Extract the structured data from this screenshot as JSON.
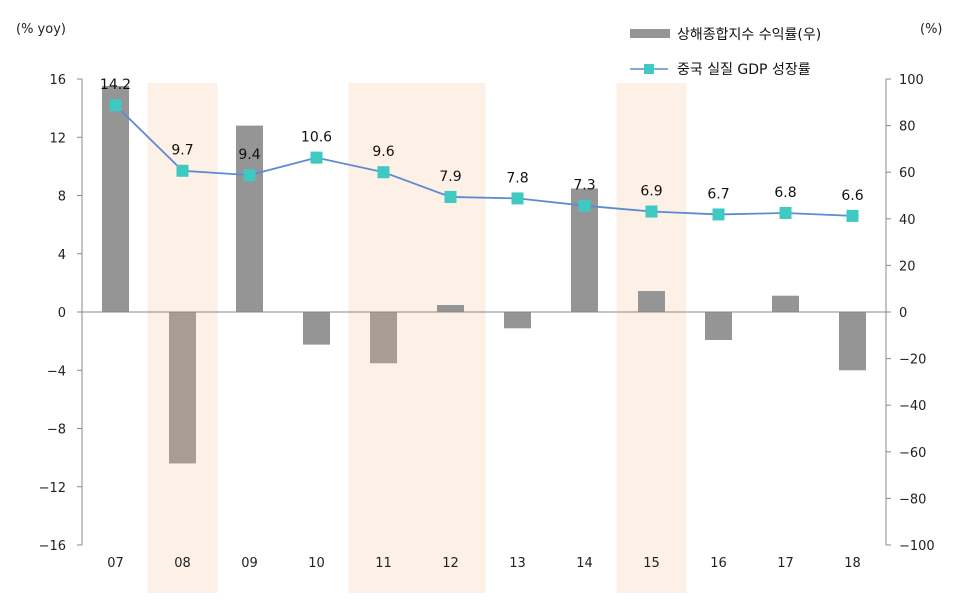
{
  "chart_data": {
    "type": "bar",
    "categories": [
      "07",
      "08",
      "09",
      "10",
      "11",
      "12",
      "13",
      "14",
      "15",
      "16",
      "17",
      "18"
    ],
    "left_axis": {
      "unit": "(% yoy)",
      "ylim": [
        -16,
        16
      ],
      "ticks": [
        "16",
        "12",
        "8",
        "4",
        "0",
        "−4",
        "−8",
        "−12",
        "−16"
      ]
    },
    "right_axis": {
      "unit": "(%)",
      "ylim": [
        -100,
        100
      ],
      "ticks": [
        "100",
        "80",
        "60",
        "40",
        "20",
        "0",
        "−20",
        "−40",
        "−60",
        "−80",
        "−100"
      ]
    },
    "series": [
      {
        "name": "상해종합지수 수익률(우)",
        "type": "bar",
        "axis": "right",
        "color": "#959595",
        "highlight_color": "#a89c95",
        "values": [
          97,
          -65,
          80,
          -14,
          -22,
          3,
          -7,
          53,
          9,
          -12,
          7,
          -25
        ]
      },
      {
        "name": "중국 실질 GDP 성장률",
        "type": "line",
        "axis": "left",
        "color": "#5b8bd0",
        "marker_color": "#3ec9c2",
        "values": [
          14.2,
          9.7,
          9.4,
          10.6,
          9.6,
          7.9,
          7.8,
          7.3,
          6.9,
          6.7,
          6.8,
          6.6
        ],
        "labels": [
          "14.2",
          "9.7",
          "9.4",
          "10.6",
          "9.6",
          "7.9",
          "7.8",
          "7.3",
          "6.9",
          "6.7",
          "6.8",
          "6.6"
        ]
      }
    ],
    "highlighted_categories": [
      "08",
      "11",
      "12",
      "15"
    ],
    "highlight_color": "#fdf0e6",
    "legend_position": "top-right",
    "grid": false
  }
}
